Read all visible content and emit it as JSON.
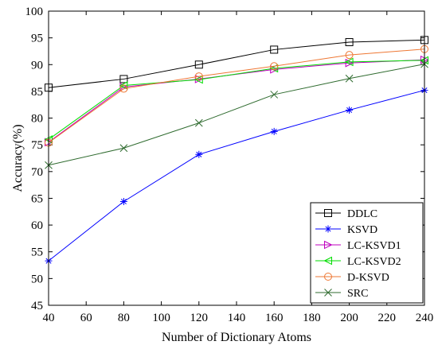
{
  "chart_data": {
    "type": "line",
    "title": "",
    "xlabel": "Number of Dictionary Atoms",
    "ylabel": "Accuracy(%)",
    "x": [
      40,
      80,
      120,
      160,
      200,
      240
    ],
    "xlim": [
      40,
      240
    ],
    "ylim": [
      45,
      100
    ],
    "xticks": [
      "40",
      "60",
      "80",
      "100",
      "120",
      "140",
      "160",
      "180",
      "200",
      "220",
      "240"
    ],
    "yticks": [
      "45",
      "50",
      "55",
      "60",
      "65",
      "70",
      "75",
      "80",
      "85",
      "90",
      "95",
      "100"
    ],
    "grid": false,
    "legend_position": "bottom-right",
    "series": [
      {
        "name": "DDLC",
        "color": "#000000",
        "marker": "square",
        "values": [
          85.7,
          87.3,
          90.0,
          92.8,
          94.2,
          94.6
        ]
      },
      {
        "name": "KSVD",
        "color": "#0000ff",
        "marker": "asterisk",
        "values": [
          53.3,
          64.4,
          73.2,
          77.5,
          81.5,
          85.2
        ]
      },
      {
        "name": "LC-KSVD1",
        "color": "#bf00bf",
        "marker": "triangle-right",
        "values": [
          75.5,
          85.8,
          87.3,
          89.1,
          90.3,
          90.9
        ]
      },
      {
        "name": "LC-KSVD2",
        "color": "#00dd00",
        "marker": "triangle-left",
        "values": [
          76.0,
          86.1,
          87.2,
          89.3,
          90.5,
          90.8
        ]
      },
      {
        "name": "D-KSVD",
        "color": "#ee7733",
        "marker": "circle",
        "values": [
          75.4,
          85.5,
          87.8,
          89.7,
          91.8,
          92.9
        ]
      },
      {
        "name": "SRC",
        "color": "#2f6b2f",
        "marker": "x",
        "values": [
          71.2,
          74.4,
          79.1,
          84.4,
          87.4,
          90.1
        ]
      }
    ]
  }
}
